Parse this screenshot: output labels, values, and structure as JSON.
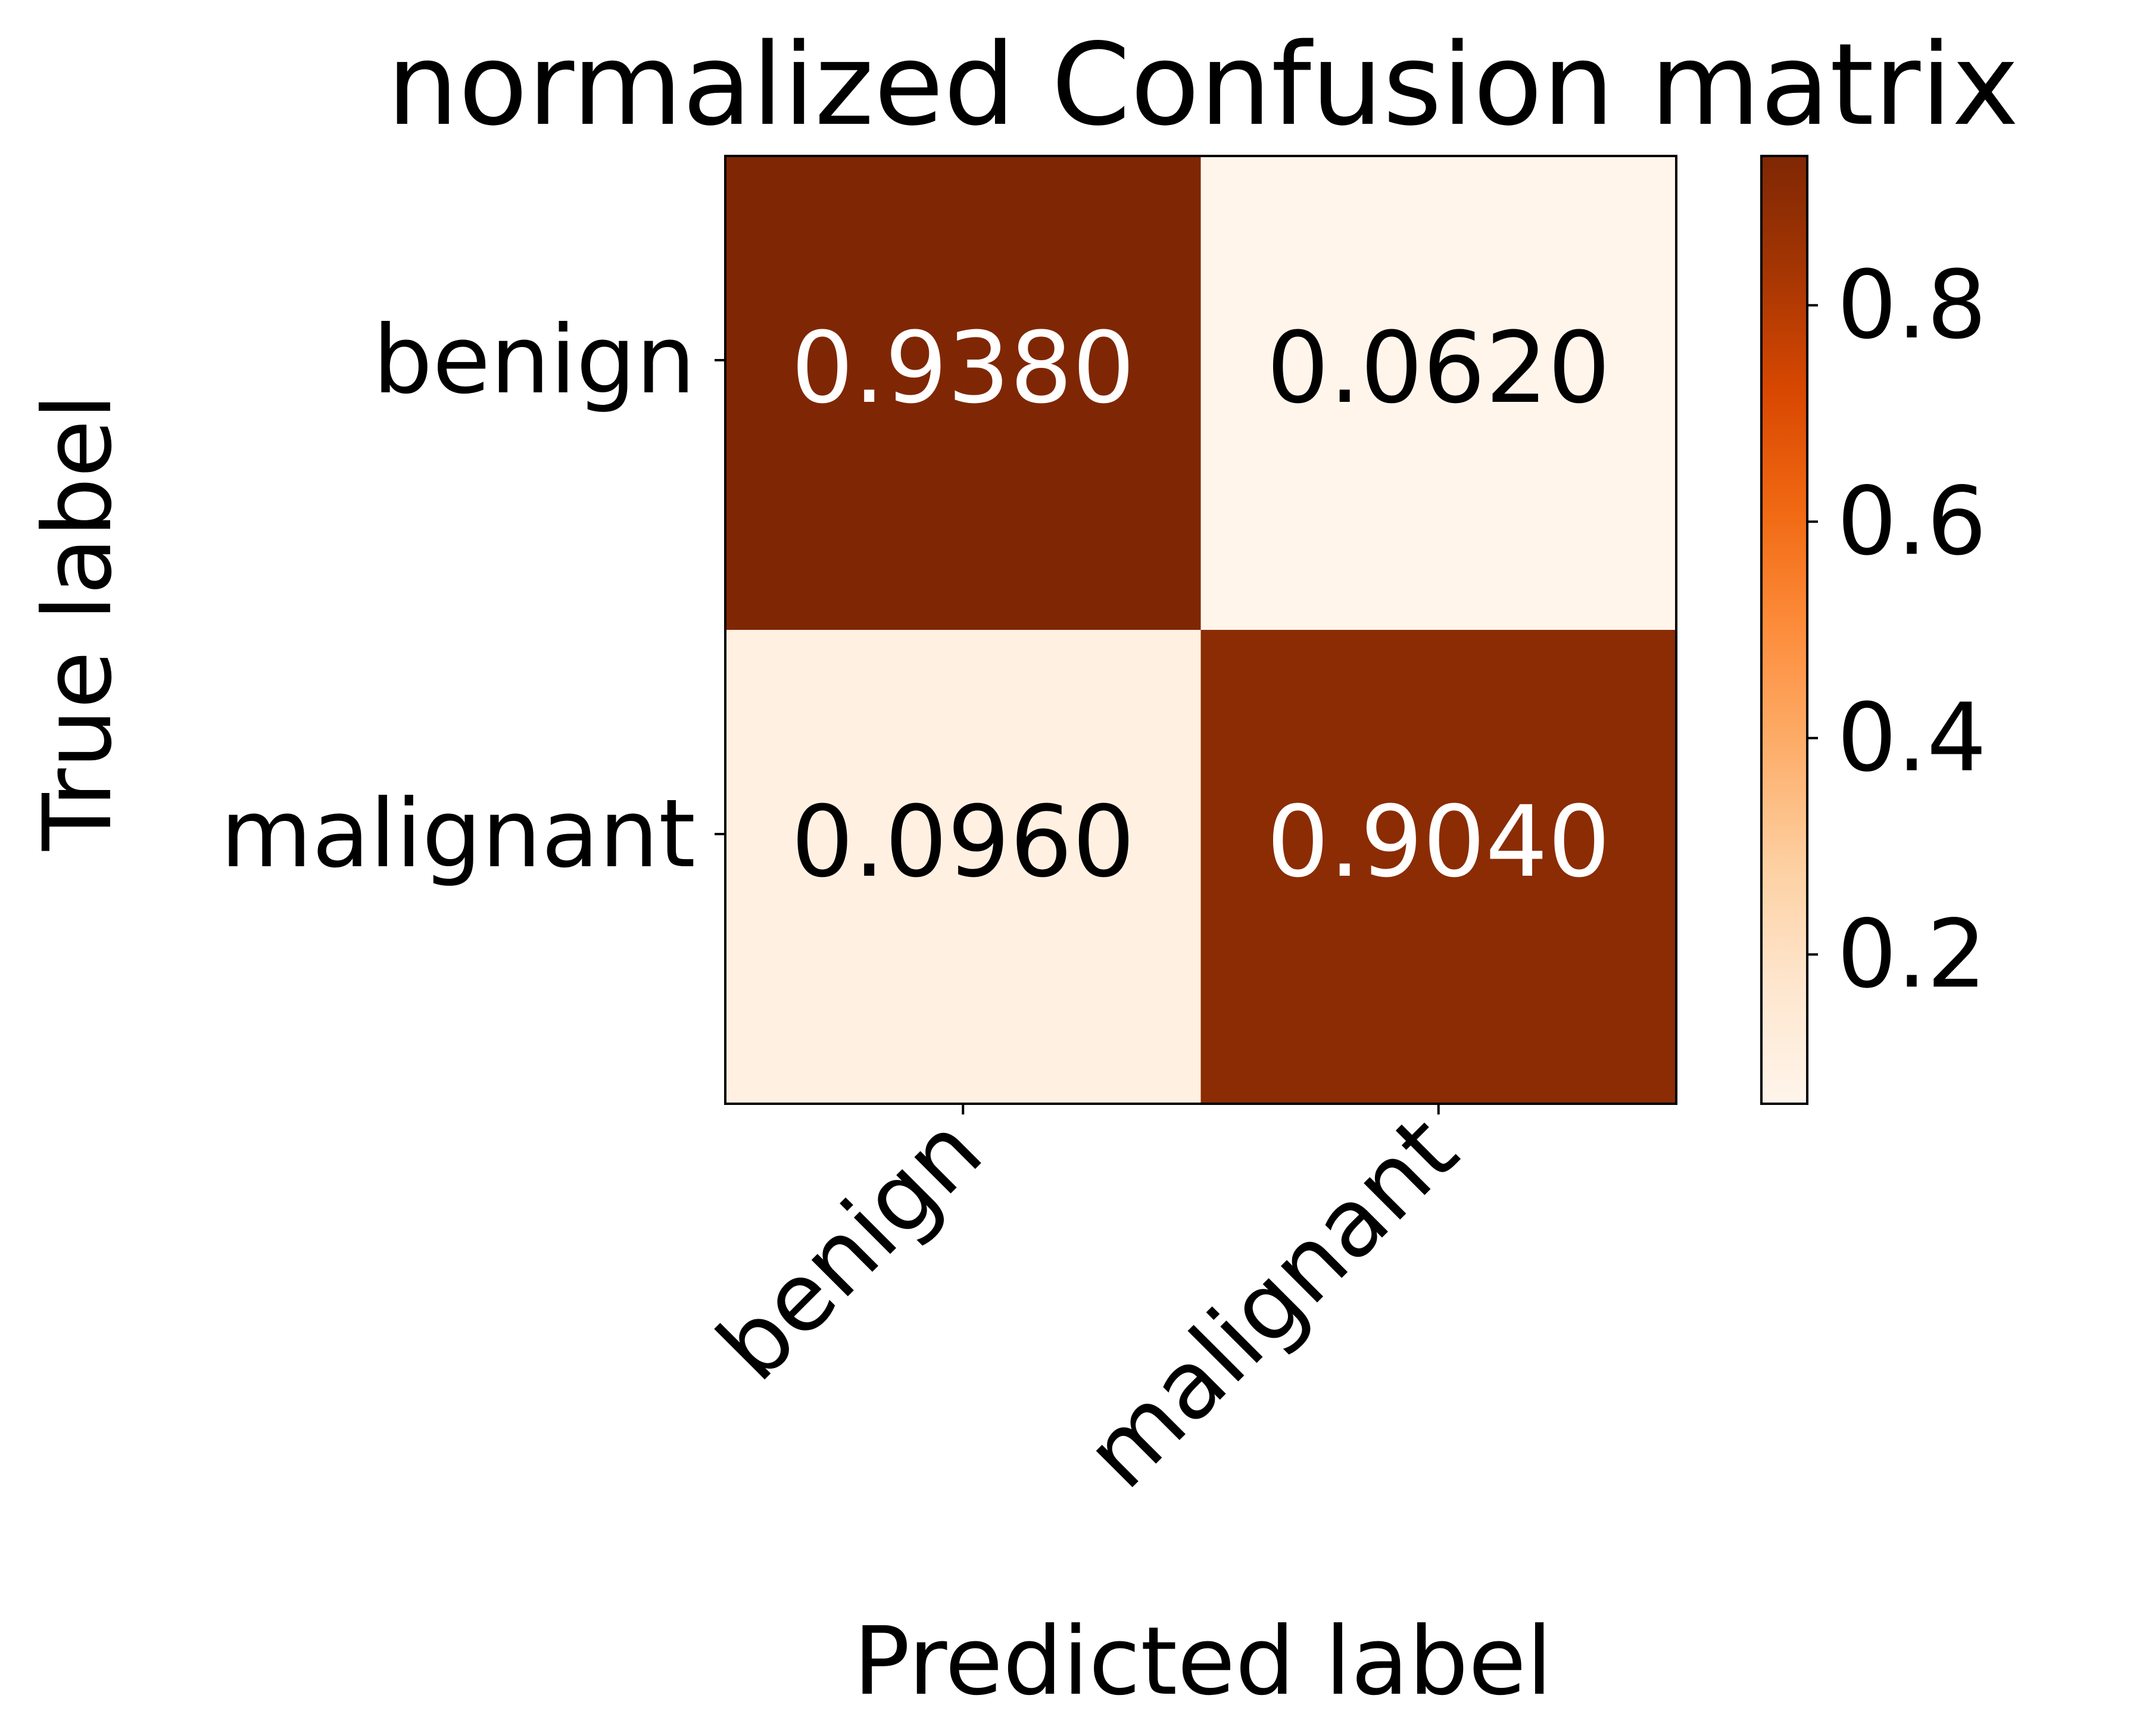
{
  "chart_data": {
    "type": "heatmap",
    "title": "normalized Confusion matrix",
    "xlabel": "Predicted label",
    "ylabel": "True label",
    "x_categories": [
      "benign",
      "malignant"
    ],
    "y_categories": [
      "benign",
      "malignant"
    ],
    "values": [
      [
        0.938,
        0.062
      ],
      [
        0.096,
        0.904
      ]
    ],
    "cell_labels": [
      [
        "0.9380",
        "0.0620"
      ],
      [
        "0.0960",
        "0.9040"
      ]
    ],
    "colormap": "Oranges",
    "colormap_stops": [
      "#fff5eb",
      "#fee6ce",
      "#fdd0a2",
      "#fdae6b",
      "#fd8d3c",
      "#f16913",
      "#d94801",
      "#a63603",
      "#7f2704"
    ],
    "value_range": [
      0.062,
      0.938
    ],
    "colorbar": {
      "ticks": [
        0.2,
        0.4,
        0.6,
        0.8
      ],
      "tick_labels": [
        "0.2",
        "0.4",
        "0.6",
        "0.8"
      ]
    },
    "text_colors": {
      "on_dark": "#ffffff",
      "on_light": "#000000"
    },
    "grid": false
  }
}
